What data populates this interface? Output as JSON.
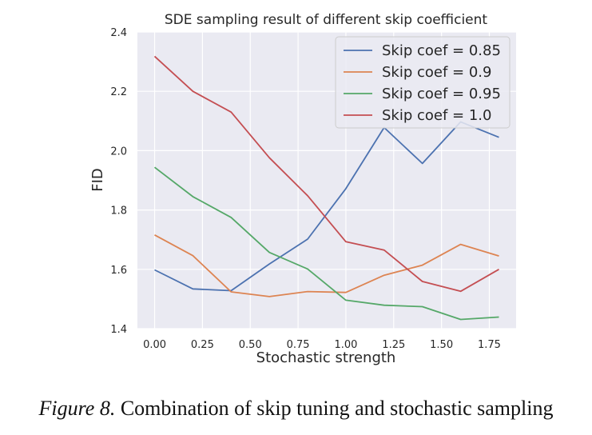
{
  "chart_data": {
    "type": "line",
    "title": "SDE sampling result of different skip coefficient",
    "xlabel": "Stochastic strength",
    "ylabel": "FID",
    "x": [
      0.0,
      0.2,
      0.4,
      0.6,
      0.8,
      1.0,
      1.2,
      1.4,
      1.6,
      1.8
    ],
    "xlim": [
      -0.09,
      1.89
    ],
    "ylim": [
      1.4,
      2.4
    ],
    "xticks": [
      "0.00",
      "0.25",
      "0.50",
      "0.75",
      "1.00",
      "1.25",
      "1.50",
      "1.75"
    ],
    "yticks": [
      "1.4",
      "1.6",
      "1.8",
      "2.0",
      "2.2",
      "2.4"
    ],
    "grid": true,
    "legend_position": "top-right",
    "series": [
      {
        "name": "Skip coef = 0.85",
        "color": "#4c72b0",
        "values": [
          1.598,
          1.534,
          1.528,
          1.618,
          1.702,
          1.872,
          2.078,
          1.957,
          2.097,
          2.045
        ]
      },
      {
        "name": "Skip coef = 0.9",
        "color": "#dd8452",
        "values": [
          1.716,
          1.646,
          1.524,
          1.508,
          1.525,
          1.522,
          1.58,
          1.614,
          1.684,
          1.645
        ]
      },
      {
        "name": "Skip coef = 0.95",
        "color": "#55a868",
        "values": [
          1.944,
          1.845,
          1.775,
          1.657,
          1.601,
          1.496,
          1.479,
          1.474,
          1.431,
          1.439
        ]
      },
      {
        "name": "Skip coef = 1.0",
        "color": "#c44e52",
        "values": [
          2.318,
          2.2,
          2.13,
          1.976,
          1.848,
          1.693,
          1.665,
          1.559,
          1.526,
          1.6
        ]
      }
    ]
  },
  "caption": {
    "label": "Figure 8.",
    "text": "Combination of skip tuning and stochastic sampling"
  }
}
